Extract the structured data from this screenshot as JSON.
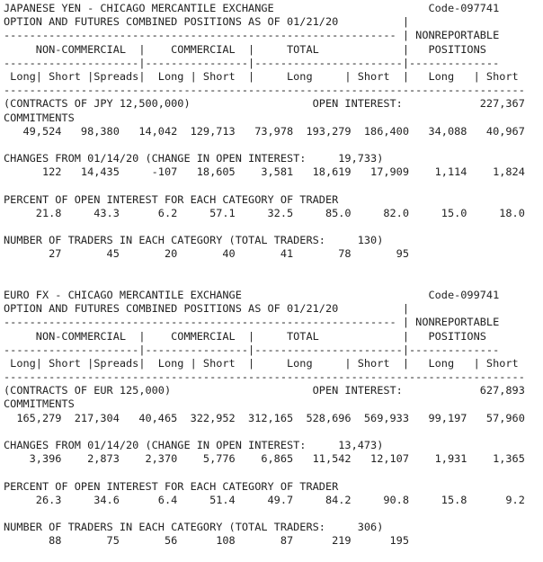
{
  "report": {
    "kind": "CFTC Commitments of Traders combined report",
    "markets": [
      {
        "title": "JAPANESE YEN - CHICAGO MERCANTILE EXCHANGE",
        "code": "Code-097741",
        "positions_type": "OPTION AND FUTURES COMBINED POSITIONS AS OF 01/21/20",
        "contract_unit": "(CONTRACTS OF JPY 12,500,000)",
        "open_interest": "227,367",
        "change_in_open_interest": "19,733",
        "total_traders": "130",
        "column_groups": [
          "NON-COMMERCIAL",
          "COMMERCIAL",
          "TOTAL",
          "NONREPORTABLE POSITIONS"
        ],
        "columns": [
          "Long",
          "Short",
          "Spreads",
          "Long",
          "Short",
          "Long",
          "Short",
          "Long",
          "Short"
        ],
        "commitments": [
          "49,524",
          "98,380",
          "14,042",
          "129,713",
          "73,978",
          "193,279",
          "186,400",
          "34,088",
          "40,967"
        ],
        "changes": [
          "122",
          "14,435",
          "-107",
          "18,605",
          "3,581",
          "18,619",
          "17,909",
          "1,114",
          "1,824"
        ],
        "percent_of_open_interest": [
          "21.8",
          "43.3",
          "6.2",
          "57.1",
          "32.5",
          "85.0",
          "82.0",
          "15.0",
          "18.0"
        ],
        "number_of_traders": [
          "27",
          "45",
          "20",
          "40",
          "41",
          "78",
          "95"
        ]
      },
      {
        "title": "EURO FX - CHICAGO MERCANTILE EXCHANGE",
        "code": "Code-099741",
        "positions_type": "OPTION AND FUTURES COMBINED POSITIONS AS OF 01/21/20",
        "contract_unit": "(CONTRACTS OF EUR 125,000)",
        "open_interest": "627,893",
        "change_in_open_interest": "13,473",
        "total_traders": "306",
        "column_groups": [
          "NON-COMMERCIAL",
          "COMMERCIAL",
          "TOTAL",
          "NONREPORTABLE POSITIONS"
        ],
        "columns": [
          "Long",
          "Short",
          "Spreads",
          "Long",
          "Short",
          "Long",
          "Short",
          "Long",
          "Short"
        ],
        "commitments": [
          "165,279",
          "217,304",
          "40,465",
          "322,952",
          "312,165",
          "528,696",
          "569,933",
          "99,197",
          "57,960"
        ],
        "changes": [
          "3,396",
          "2,873",
          "2,370",
          "5,776",
          "6,865",
          "11,542",
          "12,107",
          "1,931",
          "1,365"
        ],
        "percent_of_open_interest": [
          "26.3",
          "34.6",
          "6.4",
          "51.4",
          "49.7",
          "84.2",
          "90.8",
          "15.8",
          "9.2"
        ],
        "number_of_traders": [
          "88",
          "75",
          "56",
          "108",
          "87",
          "219",
          "195"
        ]
      }
    ],
    "text_color": "#222222",
    "background_color": "#ffffff",
    "lines": [
      "JAPANESE YEN - CHICAGO MERCANTILE EXCHANGE                        Code-097741",
      "OPTION AND FUTURES COMBINED POSITIONS AS OF 01/21/20          |",
      "------------------------------------------------------------- | NONREPORTABLE",
      "     NON-COMMERCIAL  |    COMMERCIAL  |     TOTAL             |   POSITIONS",
      "---------------------|----------------|-----------------------|--------------",
      " Long| Short |Spreads|  Long | Short  |     Long     | Short  |   Long   | Short",
      "---------------------------------------------------------------------------------",
      "(CONTRACTS OF JPY 12,500,000)                   OPEN INTEREST:            227,367",
      "COMMITMENTS",
      "   49,524   98,380   14,042  129,713   73,978  193,279  186,400   34,088   40,967",
      "",
      "CHANGES FROM 01/14/20 (CHANGE IN OPEN INTEREST:     19,733)",
      "      122   14,435     -107   18,605    3,581   18,619   17,909    1,114    1,824",
      "",
      "PERCENT OF OPEN INTEREST FOR EACH CATEGORY OF TRADER",
      "     21.8     43.3      6.2     57.1     32.5     85.0     82.0     15.0     18.0",
      "",
      "NUMBER OF TRADERS IN EACH CATEGORY (TOTAL TRADERS:     130)",
      "       27       45       20       40       41       78       95",
      "",
      "",
      "EURO FX - CHICAGO MERCANTILE EXCHANGE                             Code-099741",
      "OPTION AND FUTURES COMBINED POSITIONS AS OF 01/21/20          |",
      "------------------------------------------------------------- | NONREPORTABLE",
      "     NON-COMMERCIAL  |    COMMERCIAL  |     TOTAL             |   POSITIONS",
      "---------------------|----------------|-----------------------|--------------",
      " Long| Short |Spreads|  Long | Short  |     Long     | Short  |   Long   | Short",
      "---------------------------------------------------------------------------------",
      "(CONTRACTS OF EUR 125,000)                      OPEN INTEREST:            627,893",
      "COMMITMENTS",
      "  165,279  217,304   40,465  322,952  312,165  528,696  569,933   99,197   57,960",
      "",
      "CHANGES FROM 01/14/20 (CHANGE IN OPEN INTEREST:     13,473)",
      "    3,396    2,873    2,370    5,776    6,865   11,542   12,107    1,931    1,365",
      "",
      "PERCENT OF OPEN INTEREST FOR EACH CATEGORY OF TRADER",
      "     26.3     34.6      6.4     51.4     49.7     84.2     90.8     15.8      9.2",
      "",
      "NUMBER OF TRADERS IN EACH CATEGORY (TOTAL TRADERS:     306)",
      "       88       75       56      108       87      219      195",
      ""
    ]
  }
}
